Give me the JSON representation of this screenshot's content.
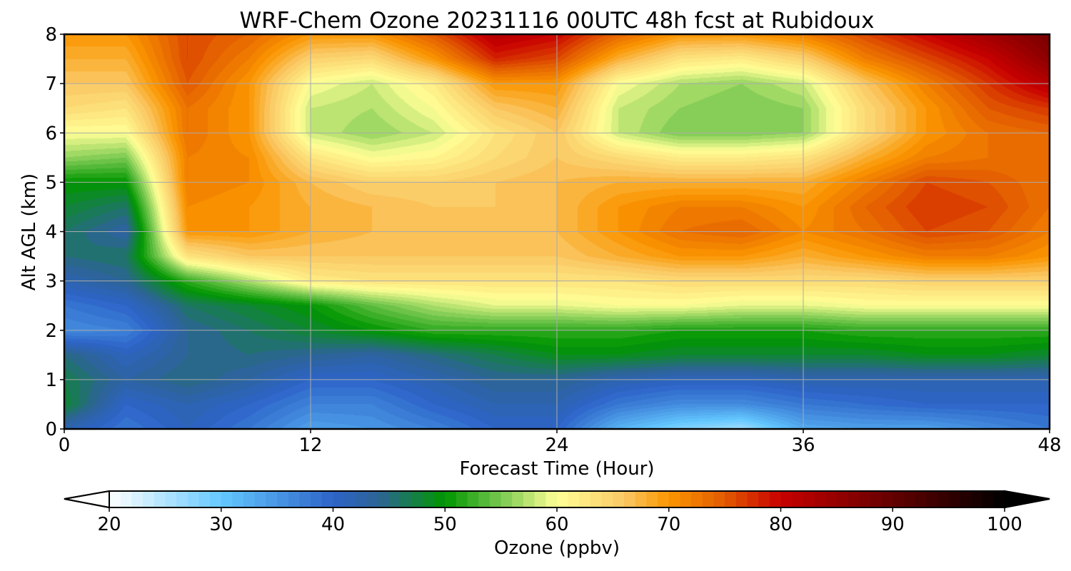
{
  "chart_data": {
    "type": "heatmap",
    "title": "WRF-Chem Ozone  20231116 00UTC 48h fcst at Rubidoux",
    "xlabel": "Forecast Time (Hour)",
    "ylabel": "Alt AGL (km)",
    "xlim": [
      0,
      48
    ],
    "ylim": [
      0,
      8
    ],
    "xticks": [
      0,
      12,
      24,
      36,
      48
    ],
    "yticks": [
      0,
      1,
      2,
      3,
      4,
      5,
      6,
      7,
      8
    ],
    "grid": true,
    "colorbar": {
      "label": "Ozone  (ppbv)",
      "orientation": "horizontal",
      "placement": "bottom",
      "range": [
        20,
        100
      ],
      "ticks": [
        20,
        30,
        40,
        50,
        60,
        70,
        80,
        90,
        100
      ],
      "extend": "both",
      "color_stops": [
        {
          "value": 20,
          "color": "#ffffff"
        },
        {
          "value": 30,
          "color": "#64c8ff"
        },
        {
          "value": 40,
          "color": "#2d64c8"
        },
        {
          "value": 44,
          "color": "#2d6496"
        },
        {
          "value": 50,
          "color": "#009600"
        },
        {
          "value": 55,
          "color": "#78c850"
        },
        {
          "value": 60,
          "color": "#ffff96"
        },
        {
          "value": 66,
          "color": "#fac864"
        },
        {
          "value": 70,
          "color": "#fa9600"
        },
        {
          "value": 75,
          "color": "#e15a00"
        },
        {
          "value": 80,
          "color": "#c80000"
        },
        {
          "value": 90,
          "color": "#640000"
        },
        {
          "value": 100,
          "color": "#000000"
        }
      ]
    },
    "x": [
      0,
      3,
      6,
      9,
      12,
      15,
      18,
      21,
      24,
      27,
      30,
      33,
      36,
      39,
      42,
      45,
      48
    ],
    "y": [
      0,
      0.5,
      1,
      1.5,
      2,
      2.5,
      3,
      3.5,
      4,
      4.5,
      5,
      5.5,
      6,
      6.5,
      7,
      7.5,
      8
    ],
    "z": [
      [
        42,
        38,
        41,
        38,
        34,
        35,
        37,
        40,
        40,
        32,
        28,
        26,
        33,
        34,
        34,
        36,
        38
      ],
      [
        48,
        40,
        42,
        40,
        37,
        37,
        40,
        42,
        42,
        38,
        36,
        36,
        38,
        39,
        40,
        40,
        40
      ],
      [
        47,
        43,
        45,
        43,
        40,
        40,
        42,
        44,
        44,
        42,
        41,
        41,
        42,
        42,
        42,
        42,
        42
      ],
      [
        45,
        41,
        44,
        45,
        44,
        43,
        45,
        47,
        49,
        49,
        48,
        48,
        48,
        48,
        49,
        49,
        48
      ],
      [
        36,
        37,
        44,
        46,
        48,
        50,
        52,
        52,
        52,
        52,
        51,
        51,
        51,
        52,
        52,
        52,
        52
      ],
      [
        38,
        40,
        46,
        48,
        50,
        54,
        57,
        59,
        59,
        60,
        60,
        59,
        59,
        60,
        60,
        60,
        60
      ],
      [
        42,
        44,
        52,
        57,
        62,
        63,
        63,
        63,
        63,
        63,
        64,
        64,
        64,
        64,
        65,
        65,
        65
      ],
      [
        45,
        46,
        63,
        66,
        66,
        66,
        66,
        66,
        66,
        68,
        70,
        70,
        68,
        70,
        72,
        72,
        70
      ],
      [
        46,
        43,
        70,
        70,
        68,
        67,
        66,
        66,
        67,
        70,
        73,
        74,
        71,
        73,
        76,
        75,
        72
      ],
      [
        48,
        46,
        71,
        70,
        68,
        67,
        66,
        66,
        67,
        70,
        72,
        72,
        70,
        74,
        77,
        76,
        73
      ],
      [
        50,
        50,
        72,
        71,
        67,
        65,
        65,
        66,
        67,
        68,
        68,
        68,
        68,
        72,
        76,
        75,
        73
      ],
      [
        56,
        55,
        72,
        71,
        63,
        60,
        61,
        64,
        66,
        64,
        62,
        62,
        63,
        68,
        72,
        73,
        73
      ],
      [
        60,
        60,
        73,
        70,
        58,
        56,
        58,
        63,
        66,
        58,
        55,
        55,
        56,
        64,
        70,
        73,
        74
      ],
      [
        64,
        63,
        73,
        70,
        58,
        57,
        60,
        66,
        68,
        58,
        56,
        55,
        56,
        64,
        70,
        75,
        77
      ],
      [
        66,
        66,
        75,
        70,
        60,
        58,
        62,
        70,
        70,
        60,
        57,
        56,
        58,
        66,
        72,
        77,
        82
      ],
      [
        68,
        68,
        76,
        72,
        65,
        64,
        70,
        78,
        76,
        68,
        63,
        62,
        65,
        72,
        76,
        80,
        86
      ],
      [
        70,
        70,
        76,
        74,
        70,
        70,
        75,
        82,
        80,
        74,
        70,
        70,
        72,
        76,
        80,
        84,
        88
      ]
    ]
  }
}
